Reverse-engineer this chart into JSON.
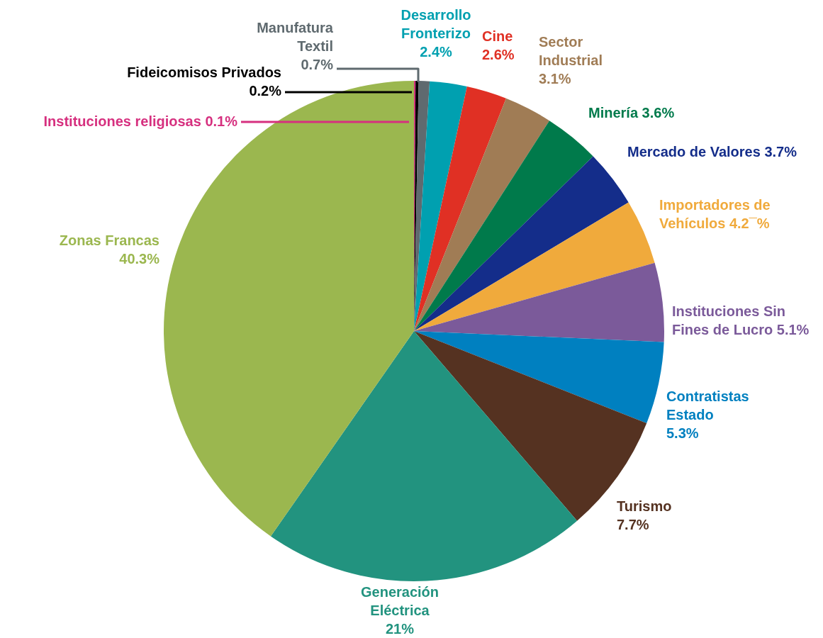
{
  "chart_data": {
    "type": "pie",
    "categories": [
      "Instituciones religiosas",
      "Fideicomisos Privados",
      "Manufatura Textil",
      "Desarrollo Fronterizo",
      "Cine",
      "Sector Industrial",
      "Minería",
      "Mercado de Valores",
      "Importadores de Vehículos",
      "Instituciones Sin Fines de Lucro",
      "Contratistas Estado",
      "Turismo",
      "Generación Eléctrica",
      "Zonas Francas"
    ],
    "values": [
      0.1,
      0.2,
      0.7,
      2.4,
      2.6,
      3.1,
      3.6,
      3.7,
      4.2,
      5.1,
      5.3,
      7.7,
      21,
      40.3
    ],
    "value_labels": [
      "0.1%",
      "0.2%",
      "0.7%",
      "2.4%",
      "2.6%",
      "3.1%",
      "3.6%",
      "3.7%",
      "4.2¯%",
      "5.1%",
      "5.3%",
      "7.7%",
      "21%",
      "40.3%"
    ],
    "colors": [
      "#d6307f",
      "#000000",
      "#5f6a6f",
      "#00a0b0",
      "#e03024",
      "#a07c55",
      "#007a4b",
      "#142d8a",
      "#f0aa3c",
      "#7b5a9a",
      "#0080c0",
      "#553221",
      "#22937f",
      "#9bb74f"
    ]
  }
}
